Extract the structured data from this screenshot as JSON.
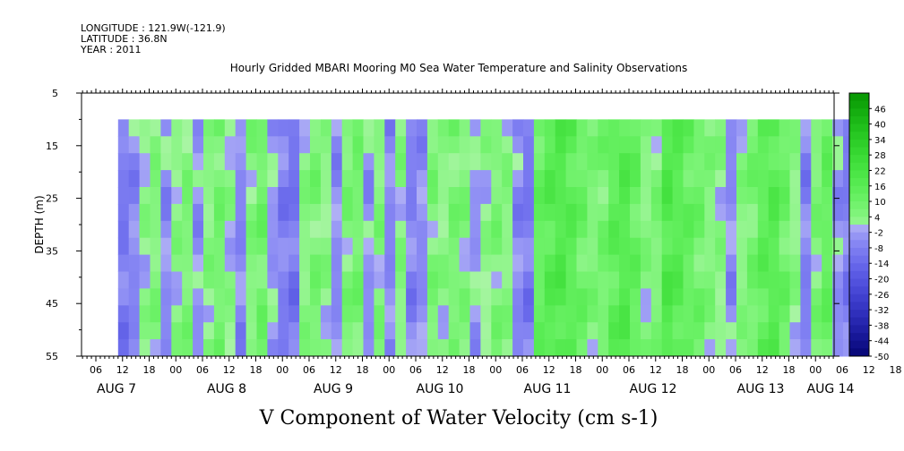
{
  "header": {
    "longitude": "LONGITUDE : 121.9W(-121.9)",
    "latitude": "LATITUDE : 36.8N",
    "year": "YEAR : 2011"
  },
  "chart_data": {
    "type": "heatmap",
    "title": "Hourly Gridded MBARI Mooring M0 Sea Water Temperature and Salinity Observations",
    "xlabel": "V Component of Water Velocity (cm s-1)",
    "ylabel": "DEPTH (m)",
    "y_ticks": [
      "5",
      "15",
      "25",
      "35",
      "45",
      "55"
    ],
    "ylim": [
      5,
      55
    ],
    "x_hour_ticks": [
      "06",
      "12",
      "18",
      "00",
      "06",
      "12",
      "18",
      "00",
      "06",
      "12",
      "18",
      "00",
      "06",
      "12",
      "18",
      "00",
      "06",
      "12",
      "18",
      "00",
      "06",
      "12",
      "18",
      "00",
      "06",
      "12",
      "18",
      "00",
      "06",
      "12",
      "18",
      "00"
    ],
    "x_day_labels": [
      "AUG  7",
      "AUG  8",
      "AUG  9",
      "AUG 10",
      "AUG 11",
      "AUG 12",
      "AUG 13",
      "AUG 14"
    ],
    "data_depth_range": [
      10,
      55
    ],
    "colorbar": {
      "labels": [
        "46",
        "40",
        "34",
        "28",
        "22",
        "16",
        "10",
        "4",
        "-2",
        "-8",
        "-14",
        "-20",
        "-26",
        "-32",
        "-38",
        "-44",
        "-50"
      ],
      "range": [
        -50,
        52
      ],
      "step": 3
    },
    "column_profile": [
      {
        "day": 7.0,
        "v": -9
      },
      {
        "day": 7.1,
        "v": -6
      },
      {
        "day": 7.2,
        "v": 2
      },
      {
        "day": 7.3,
        "v": 5
      },
      {
        "day": 7.4,
        "v": -5
      },
      {
        "day": 7.5,
        "v": 3
      },
      {
        "day": 7.6,
        "v": 6
      },
      {
        "day": 7.7,
        "v": -4
      },
      {
        "day": 7.8,
        "v": 4
      },
      {
        "day": 7.9,
        "v": 8
      },
      {
        "day": 8.0,
        "v": 2
      },
      {
        "day": 8.1,
        "v": -6
      },
      {
        "day": 8.2,
        "v": 5
      },
      {
        "day": 8.3,
        "v": 9
      },
      {
        "day": 8.4,
        "v": -3
      },
      {
        "day": 8.5,
        "v": -8
      },
      {
        "day": 8.6,
        "v": -10
      },
      {
        "day": 8.7,
        "v": 4
      },
      {
        "day": 8.8,
        "v": 7
      },
      {
        "day": 8.9,
        "v": 3
      },
      {
        "day": 9.0,
        "v": -5
      },
      {
        "day": 9.1,
        "v": 6
      },
      {
        "day": 9.2,
        "v": 8
      },
      {
        "day": 9.3,
        "v": -4
      },
      {
        "day": 9.4,
        "v": 5
      },
      {
        "day": 9.5,
        "v": -6
      },
      {
        "day": 9.6,
        "v": 4
      },
      {
        "day": 9.7,
        "v": -7
      },
      {
        "day": 9.8,
        "v": -5
      },
      {
        "day": 9.9,
        "v": 6
      },
      {
        "day": 10.0,
        "v": 3
      },
      {
        "day": 10.1,
        "v": 7
      },
      {
        "day": 10.2,
        "v": 5
      },
      {
        "day": 10.3,
        "v": -3
      },
      {
        "day": 10.4,
        "v": 2
      },
      {
        "day": 10.5,
        "v": 6
      },
      {
        "day": 10.6,
        "v": 4
      },
      {
        "day": 10.7,
        "v": -6
      },
      {
        "day": 10.8,
        "v": -9
      },
      {
        "day": 10.9,
        "v": 12
      },
      {
        "day": 11.0,
        "v": 16
      },
      {
        "day": 11.1,
        "v": 18
      },
      {
        "day": 11.2,
        "v": 15
      },
      {
        "day": 11.3,
        "v": 10
      },
      {
        "day": 11.4,
        "v": 6
      },
      {
        "day": 11.5,
        "v": 8
      },
      {
        "day": 11.6,
        "v": 14
      },
      {
        "day": 11.7,
        "v": 17
      },
      {
        "day": 11.8,
        "v": 12
      },
      {
        "day": 11.9,
        "v": 4
      },
      {
        "day": 12.0,
        "v": 6
      },
      {
        "day": 12.1,
        "v": 18
      },
      {
        "day": 12.2,
        "v": 16
      },
      {
        "day": 12.3,
        "v": 12
      },
      {
        "day": 12.4,
        "v": 9
      },
      {
        "day": 12.5,
        "v": 5
      },
      {
        "day": 12.6,
        "v": 3
      },
      {
        "day": 12.7,
        "v": -5
      },
      {
        "day": 12.8,
        "v": 4
      },
      {
        "day": 12.9,
        "v": 8
      },
      {
        "day": 13.0,
        "v": 14
      },
      {
        "day": 13.1,
        "v": 16
      },
      {
        "day": 13.2,
        "v": 10
      },
      {
        "day": 13.3,
        "v": 3
      },
      {
        "day": 13.4,
        "v": -7
      },
      {
        "day": 13.5,
        "v": 6
      },
      {
        "day": 13.6,
        "v": 12
      },
      {
        "day": 13.7,
        "v": -4
      },
      {
        "day": 13.8,
        "v": -8
      }
    ],
    "grid": false,
    "legend_position": "right"
  }
}
